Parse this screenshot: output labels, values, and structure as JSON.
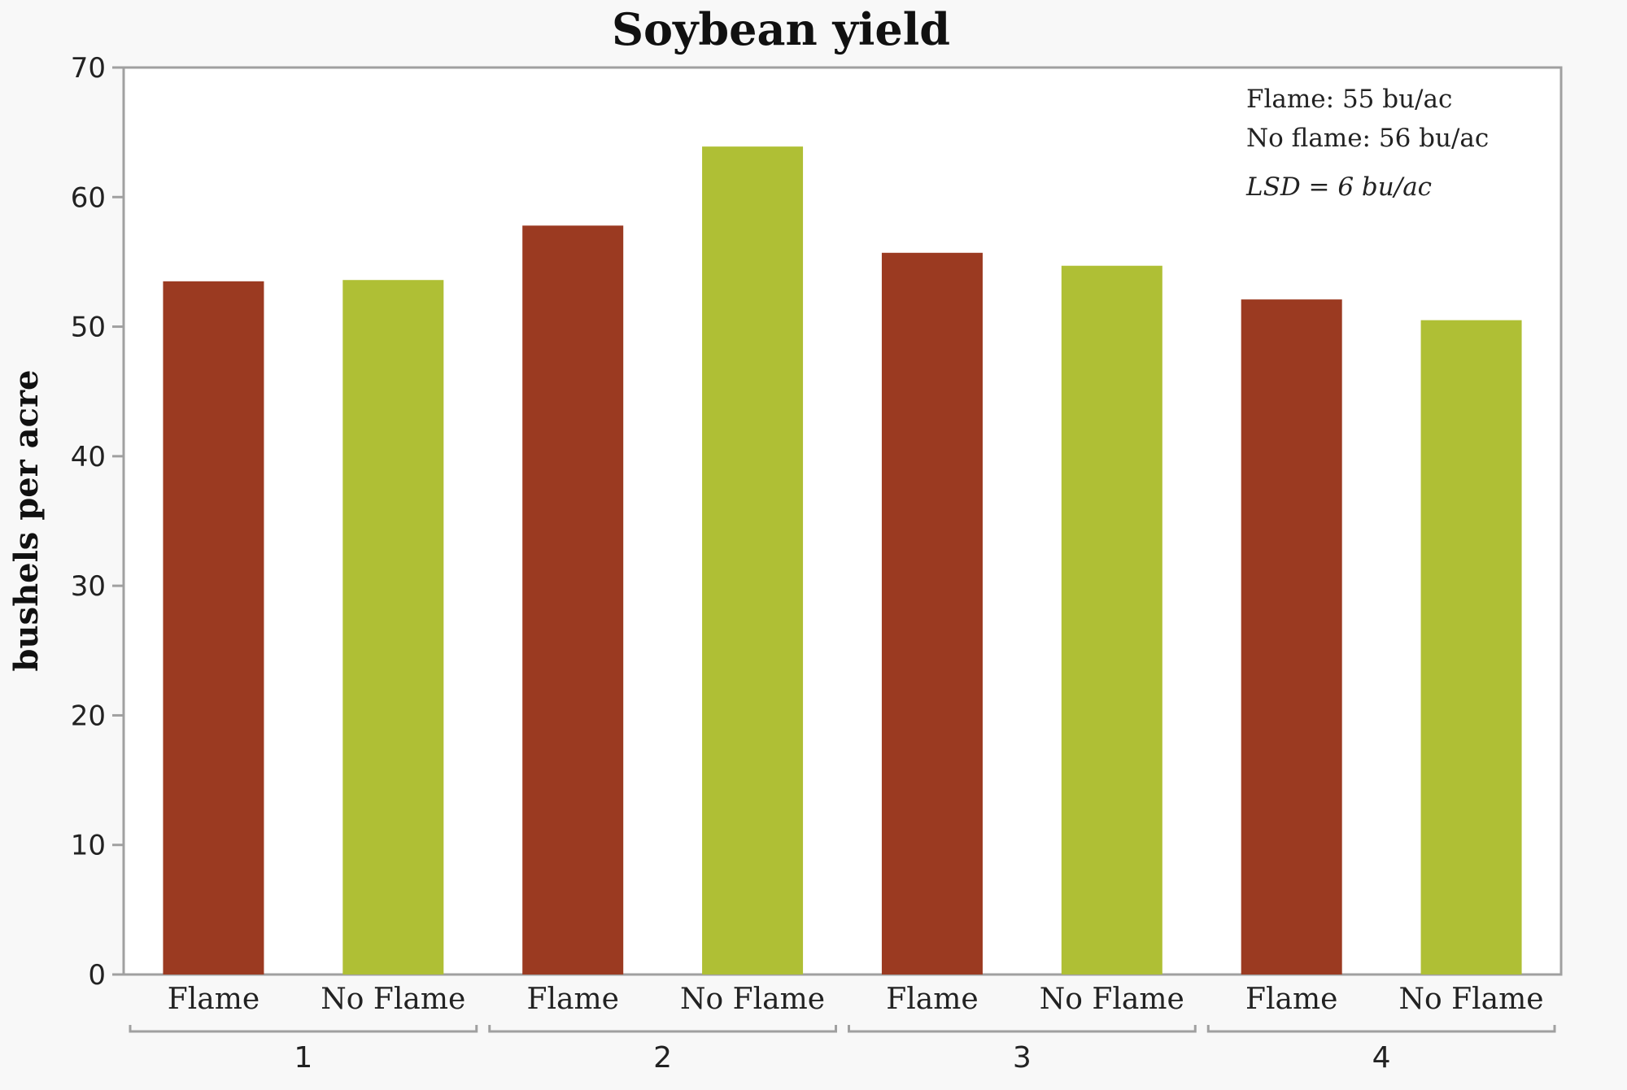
{
  "chart_data": {
    "type": "bar",
    "title": "Soybean yield",
    "ylabel": "bushels per acre",
    "xlabel": "",
    "ylim": [
      0,
      70
    ],
    "yticks": [
      0,
      10,
      20,
      30,
      40,
      50,
      60,
      70
    ],
    "grid": false,
    "groups": [
      "1",
      "2",
      "3",
      "4"
    ],
    "categories": [
      "Flame",
      "No Flame",
      "Flame",
      "No Flame",
      "Flame",
      "No Flame",
      "Flame",
      "No Flame"
    ],
    "values": [
      53.5,
      53.6,
      57.8,
      63.9,
      55.7,
      54.7,
      52.1,
      50.5
    ],
    "colors": {
      "Flame": "#9b3a21",
      "No Flame": "#afbf35"
    },
    "annotations": [
      "Flame: 55 bu/ac",
      "No flame: 56 bu/ac",
      "LSD = 6 bu/ac"
    ]
  }
}
